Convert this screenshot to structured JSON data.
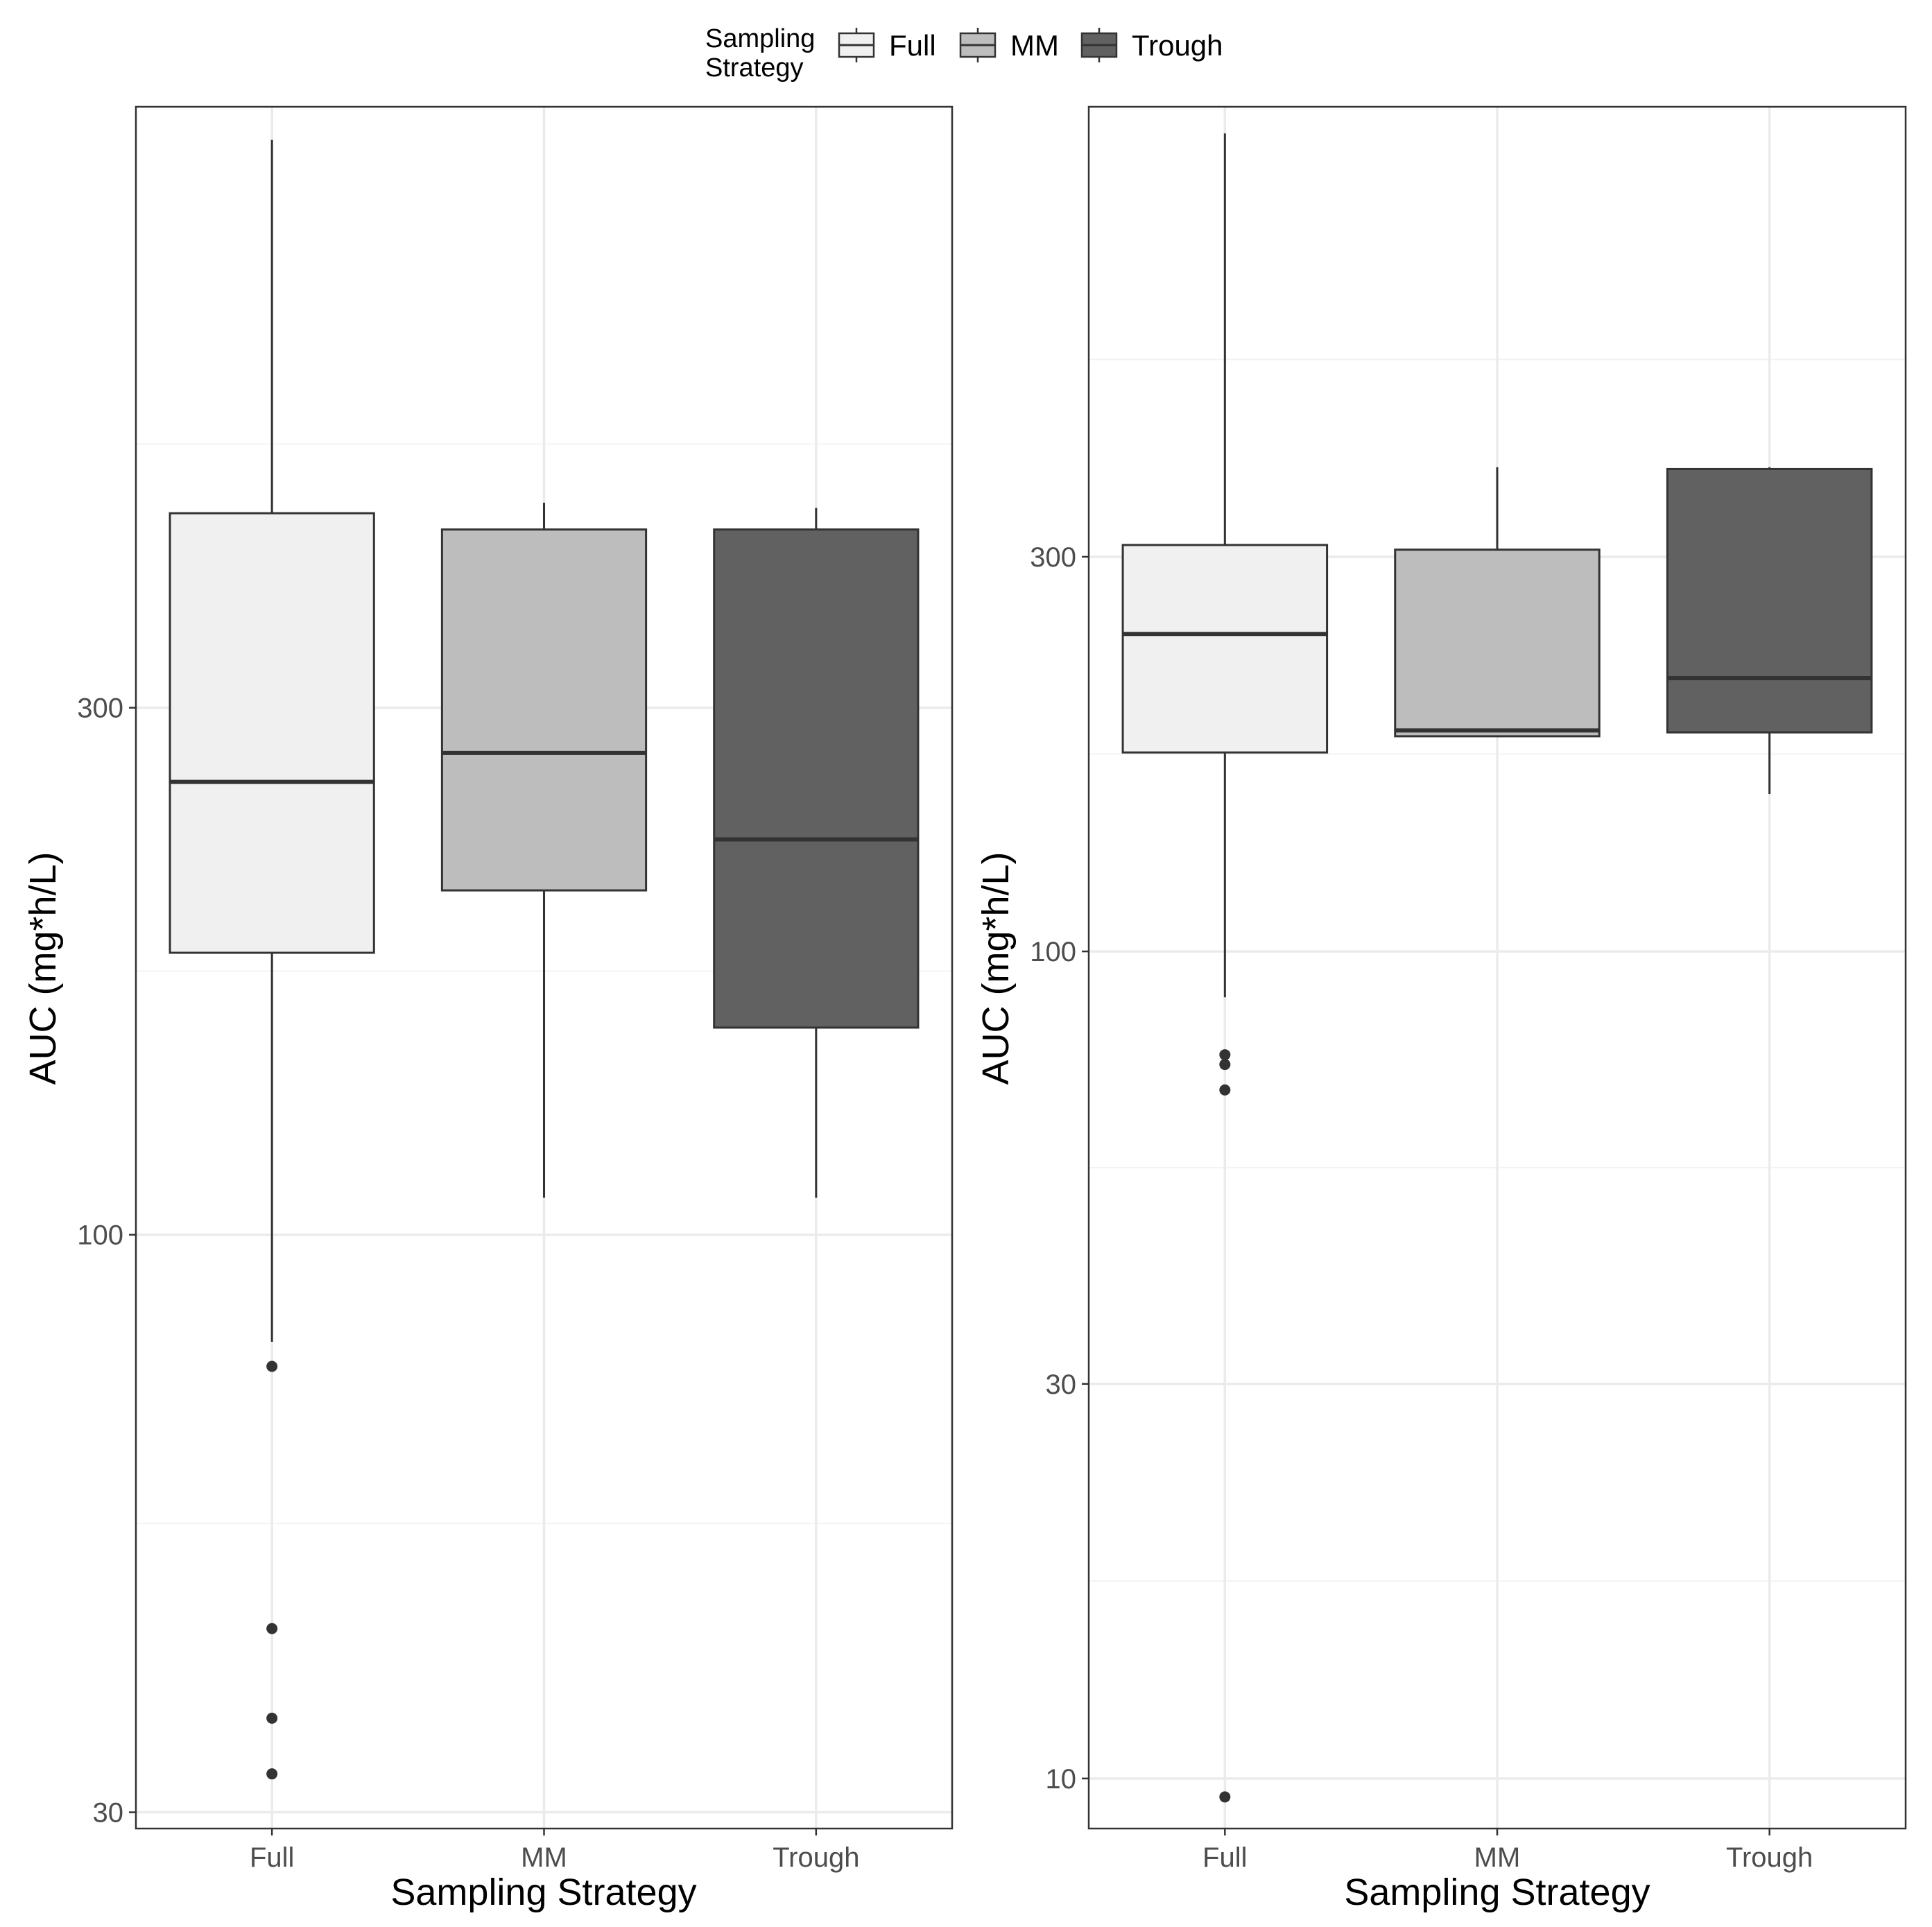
{
  "legend": {
    "title_line1": "Sampling",
    "title_line2": "Strategy",
    "entries": [
      {
        "label": "Full",
        "color": "#f0f0f0"
      },
      {
        "label": "MM",
        "color": "#bdbdbd"
      },
      {
        "label": "Trough",
        "color": "#616161"
      }
    ]
  },
  "chart_data": [
    {
      "type": "boxplot",
      "xlabel": "Sampling Strategy",
      "ylabel": "AUC (mg*h/L)",
      "yscale": "log10",
      "ylim": [
        29,
        1050
      ],
      "yticks": [
        30,
        100,
        300
      ],
      "grid": true,
      "categories": [
        "Full",
        "MM",
        "Trough"
      ],
      "series": [
        {
          "name": "Full",
          "fill": "#f0f0f0",
          "whisker_low": 80,
          "q1": 180,
          "median": 257,
          "q3": 450,
          "whisker_high": 980,
          "outliers": [
            76,
            44,
            36.5,
            32.5
          ]
        },
        {
          "name": "MM",
          "fill": "#bdbdbd",
          "whisker_low": 108,
          "q1": 205,
          "median": 273,
          "q3": 435,
          "whisker_high": 460,
          "outliers": []
        },
        {
          "name": "Trough",
          "fill": "#616161",
          "whisker_low": 108,
          "q1": 154,
          "median": 228,
          "q3": 435,
          "whisker_high": 455,
          "outliers": []
        }
      ]
    },
    {
      "type": "boxplot",
      "xlabel": "Sampling Strategy",
      "ylabel": "AUC (mg*h/L)",
      "yscale": "log10",
      "ylim": [
        8.7,
        1050
      ],
      "yticks": [
        10,
        30,
        100,
        300
      ],
      "grid": true,
      "categories": [
        "Full",
        "MM",
        "Trough"
      ],
      "series": [
        {
          "name": "Full",
          "fill": "#f0f0f0",
          "whisker_low": 88,
          "q1": 174,
          "median": 242,
          "q3": 310,
          "whisker_high": 975,
          "outliers": [
            75,
            73,
            68,
            9.5
          ]
        },
        {
          "name": "MM",
          "fill": "#bdbdbd",
          "whisker_low": 182,
          "q1": 182,
          "median": 185,
          "q3": 306,
          "whisker_high": 385,
          "outliers": []
        },
        {
          "name": "Trough",
          "fill": "#616161",
          "whisker_low": 155,
          "q1": 184,
          "median": 214,
          "q3": 383,
          "whisker_high": 385,
          "outliers": []
        }
      ]
    }
  ]
}
